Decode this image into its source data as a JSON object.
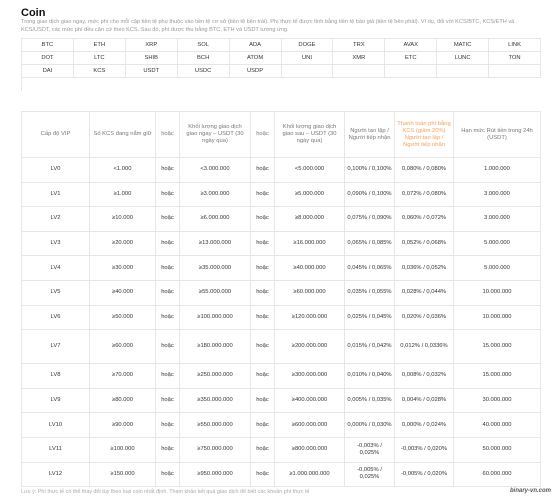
{
  "title": "Coin",
  "description": "Trong giao dịch giao ngay, mức phí cho mỗi cặp tiền tệ phụ thuộc vào tiền tệ cơ sở (tiền tệ bên trái). Phí thực tế được tính bằng tiền tệ báo giá (tiền tệ bên phải). Ví dụ, đối với KCS/BTC, KCS/ETH và KCS/USDT, các mức phí đều căn cứ theo KCS. Sau đó, phí được thu bằng BTC, ETH và USDT tương ứng.",
  "coins": [
    "BTC",
    "ETH",
    "XRP",
    "SOL",
    "ADA",
    "DOGE",
    "TRX",
    "AVAX",
    "MATIC",
    "LINK",
    "DOT",
    "LTC",
    "SHIB",
    "BCH",
    "ATOM",
    "UNI",
    "XMR",
    "ETC",
    "LUNC",
    "TON",
    "DAI",
    "KCS",
    "USDT",
    "USDC",
    "USDP"
  ],
  "table": {
    "headers": [
      "Cấp độ VIP",
      "Số KCS đang nắm giữ",
      "hoặc",
      "Khối lượng giao dịch giao ngay – USDT (30 ngày qua)",
      "hoặc",
      "Khối lượng giao dịch giao sau – USDT (30 ngày qua)",
      "Người tạo lập / Người tiếp nhận",
      "Thanh toán phí bằng KCS (giảm 20%) Người tạo lập / Người tiếp nhận",
      "Hạn mức Rút tiền trong 24h (USDT)"
    ],
    "rows": [
      [
        "LV0",
        "<1.000",
        "hoặc",
        "<3.000.000",
        "hoặc",
        "<5.000.000",
        "0,100% / 0,100%",
        "0,080% / 0,080%",
        "1.000.000"
      ],
      [
        "LV1",
        "≥1.000",
        "hoặc",
        "≥3.000.000",
        "hoặc",
        "≥5.000.000",
        "0,090% / 0,100%",
        "0,072% / 0,080%",
        "3.000.000"
      ],
      [
        "LV2",
        "≥10.000",
        "hoặc",
        "≥6.000.000",
        "hoặc",
        "≥8.000.000",
        "0,075% / 0,090%",
        "0,060% / 0,072%",
        "3.000.000"
      ],
      [
        "LV3",
        "≥20.000",
        "hoặc",
        "≥13.000.000",
        "hoặc",
        "≥16.000.000",
        "0,065% / 0,085%",
        "0,052% / 0,068%",
        "5.000.000"
      ],
      [
        "LV4",
        "≥30.000",
        "hoặc",
        "≥35.000.000",
        "hoặc",
        "≥40.000.000",
        "0,045% / 0,065%",
        "0,036% / 0,052%",
        "5.000.000"
      ],
      [
        "LV5",
        "≥40.000",
        "hoặc",
        "≥55.000.000",
        "hoặc",
        "≥60.000.000",
        "0,035% / 0,055%",
        "0,028% / 0,044%",
        "10.000.000"
      ],
      [
        "LV6",
        "≥50.000",
        "hoặc",
        "≥100.000.000",
        "hoặc",
        "≥120.000.000",
        "0,025% / 0,045%",
        "0,020% / 0,036%",
        "10.000.000"
      ],
      [
        "LV7",
        "≥60.000",
        "hoặc",
        "≥180.000.000",
        "hoặc",
        "≥200.000.000",
        "0,015% / 0,042%",
        "0,012% / 0,0336%",
        "15.000.000"
      ],
      [
        "LV8",
        "≥70.000",
        "hoặc",
        "≥250.000.000",
        "hoặc",
        "≥300.000.000",
        "0,010% / 0,040%",
        "0,008% / 0,032%",
        "15.000.000"
      ],
      [
        "LV9",
        "≥80.000",
        "hoặc",
        "≥350.000.000",
        "hoặc",
        "≥400.000.000",
        "0,005% / 0,035%",
        "0,004% / 0,028%",
        "30.000.000"
      ],
      [
        "LV10",
        "≥90.000",
        "hoặc",
        "≥550.000.000",
        "hoặc",
        "≥600.000.000",
        "0,000% / 0,030%",
        "0,000% / 0,024%",
        "40.000.000"
      ],
      [
        "LV11",
        "≥100.000",
        "hoặc",
        "≥750.000.000",
        "hoặc",
        "≥800.000.000",
        "-0,003% / 0,025%",
        "-0,003% / 0,020%",
        "50.000.000"
      ],
      [
        "LV12",
        "≥150.000",
        "hoặc",
        "≥950.000.000",
        "hoặc",
        "≥1.000.000.000",
        "-0,005% / 0,025%",
        "-0,005% / 0,020%",
        "60.000.000"
      ]
    ]
  },
  "footnote": "Lưu ý: Phí thực tế có thể thay đổi tùy theo loại coin nhất định. Tham khảo kết quả giao dịch để biết các khoản phí thực tế",
  "watermark": "binary-vn.com"
}
